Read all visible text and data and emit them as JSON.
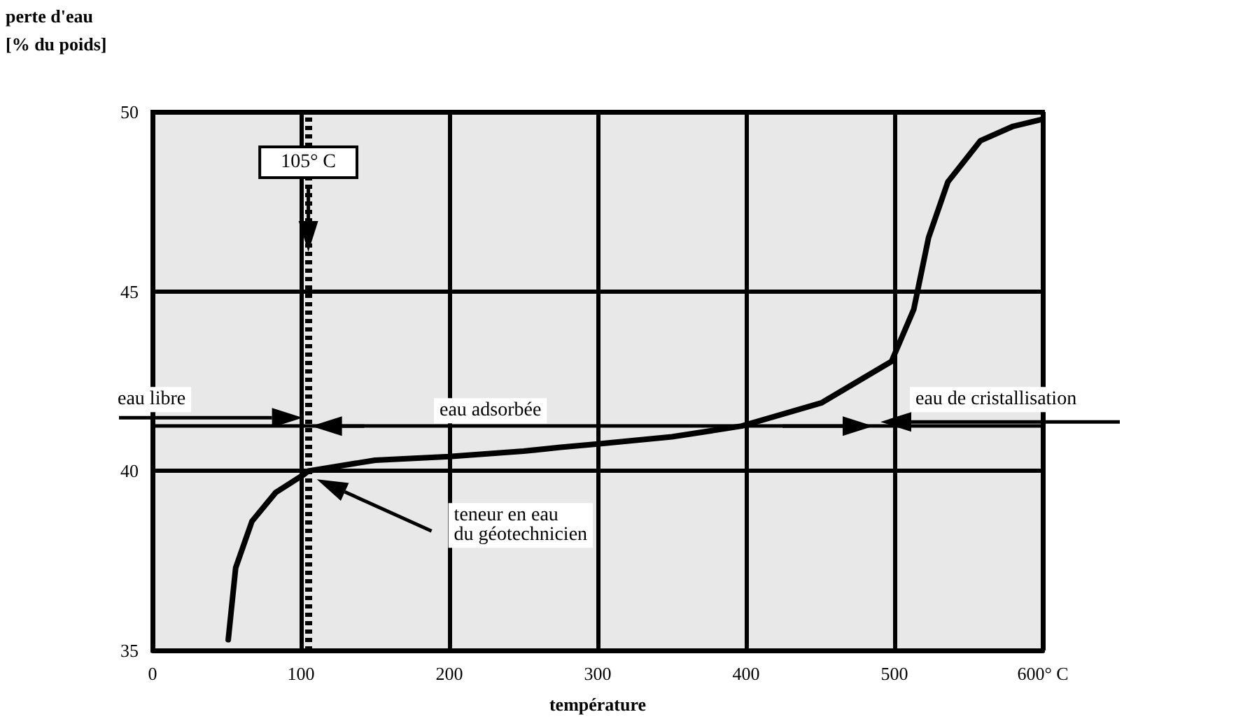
{
  "chart_data": {
    "type": "line",
    "xlabel": "température",
    "ylabel": "perte d'eau\n[% du poids]",
    "x": [
      51,
      56,
      67,
      83,
      102,
      105,
      150,
      200,
      250,
      275,
      300,
      350,
      397,
      451,
      498,
      513,
      523,
      536,
      558,
      580,
      600
    ],
    "series": [
      {
        "color": "#000000",
        "values": [
          35.3,
          37.3,
          38.6,
          39.4,
          39.9,
          40.0,
          40.3,
          40.4,
          40.55,
          40.66,
          40.75,
          40.95,
          41.25,
          41.9,
          43.05,
          44.5,
          46.5,
          48.05,
          49.2,
          49.6,
          49.8
        ]
      }
    ],
    "xlim": [
      0,
      600
    ],
    "xticks": [
      0,
      100,
      200,
      300,
      400,
      500,
      {
        "value": 600,
        "label": "600° C"
      }
    ],
    "ylim": [
      35,
      50
    ],
    "yticks": [
      35,
      40,
      45,
      50
    ],
    "grid": true,
    "marker": "none",
    "line_style": "solid",
    "ref_lines": [
      {
        "axis": "x",
        "value": 105,
        "label": "105° C",
        "line_style": "dotted",
        "color": "#000000"
      },
      {
        "axis": "y",
        "value": 41.25,
        "color": "#000000"
      }
    ],
    "annotations": [
      "eau libre",
      "eau adsorbée",
      "eau de cristallisation",
      "teneur en eau\ndu géotechnicien"
    ]
  }
}
